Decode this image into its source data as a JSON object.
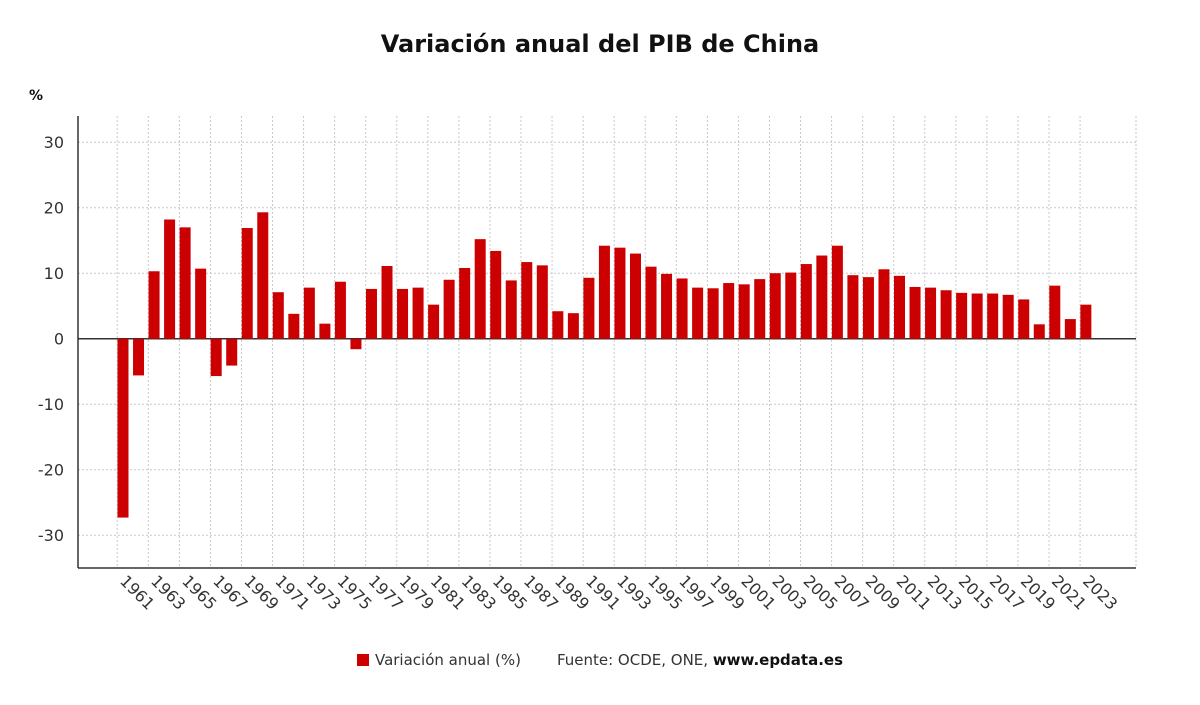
{
  "title": "Variación anual del PIB de China",
  "chart_data": {
    "type": "bar",
    "title": "Variación anual del PIB de China",
    "ylabel": "%",
    "xlabel": "",
    "ylim": [
      -35,
      34
    ],
    "yticks": [
      -30,
      -20,
      -10,
      0,
      10,
      20,
      30
    ],
    "grid": true,
    "legend_position": "bottom-center",
    "categories": [
      "1961",
      "1962",
      "1963",
      "1964",
      "1965",
      "1966",
      "1967",
      "1968",
      "1969",
      "1970",
      "1971",
      "1972",
      "1973",
      "1974",
      "1975",
      "1976",
      "1977",
      "1978",
      "1979",
      "1980",
      "1981",
      "1982",
      "1983",
      "1984",
      "1985",
      "1986",
      "1987",
      "1988",
      "1989",
      "1990",
      "1991",
      "1992",
      "1993",
      "1994",
      "1995",
      "1996",
      "1997",
      "1998",
      "1999",
      "2000",
      "2001",
      "2002",
      "2003",
      "2004",
      "2005",
      "2006",
      "2007",
      "2008",
      "2009",
      "2010",
      "2011",
      "2012",
      "2013",
      "2014",
      "2015",
      "2016",
      "2017",
      "2018",
      "2019",
      "2020",
      "2021",
      "2022",
      "2023"
    ],
    "x_tick_labels": [
      "1961",
      "1963",
      "1965",
      "1967",
      "1969",
      "1971",
      "1973",
      "1975",
      "1977",
      "1979",
      "1981",
      "1983",
      "1985",
      "1987",
      "1989",
      "1991",
      "1993",
      "1995",
      "1997",
      "1999",
      "2001",
      "2003",
      "2005",
      "2007",
      "2009",
      "2011",
      "2013",
      "2015",
      "2017",
      "2019",
      "2021",
      "2023"
    ],
    "series": [
      {
        "name": "Variación anual (%)",
        "color": "#cc0000",
        "values": [
          -27.3,
          -5.6,
          10.3,
          18.2,
          17.0,
          10.7,
          -5.7,
          -4.1,
          16.9,
          19.3,
          7.1,
          3.8,
          7.8,
          2.3,
          8.7,
          -1.6,
          7.6,
          11.1,
          7.6,
          7.8,
          5.2,
          9.0,
          10.8,
          15.2,
          13.4,
          8.9,
          11.7,
          11.2,
          4.2,
          3.9,
          9.3,
          14.2,
          13.9,
          13.0,
          11.0,
          9.9,
          9.2,
          7.8,
          7.7,
          8.5,
          8.3,
          9.1,
          10.0,
          10.1,
          11.4,
          12.7,
          14.2,
          9.7,
          9.4,
          10.6,
          9.6,
          7.9,
          7.8,
          7.4,
          7.0,
          6.9,
          6.9,
          6.7,
          6.0,
          2.2,
          8.1,
          3.0,
          5.2
        ]
      }
    ]
  },
  "legend": {
    "series_label": "Variación anual (%)",
    "source_prefix": "Fuente: OCDE, ONE, ",
    "source_domain": "www.epdata.es"
  }
}
